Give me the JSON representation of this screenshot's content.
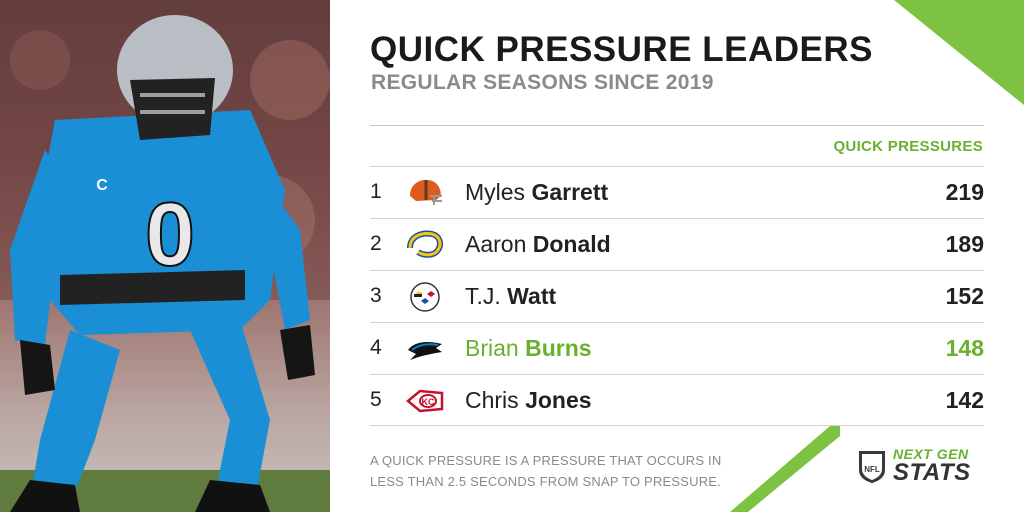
{
  "chart_data": {
    "type": "table",
    "title": "QUICK PRESSURE LEADERS",
    "subtitle": "REGULAR SEASONS SINCE 2019",
    "column_header": "QUICK PRESSURES",
    "rows": [
      {
        "rank": "1",
        "first": "Myles",
        "last": "Garrett",
        "team_icon": "browns-helmet-icon",
        "value": "219",
        "highlight": false
      },
      {
        "rank": "2",
        "first": "Aaron",
        "last": "Donald",
        "team_icon": "rams-horn-icon",
        "value": "189",
        "highlight": false
      },
      {
        "rank": "3",
        "first": "T.J.",
        "last": "Watt",
        "team_icon": "steelers-logo-icon",
        "value": "152",
        "highlight": false
      },
      {
        "rank": "4",
        "first": "Brian",
        "last": "Burns",
        "team_icon": "panthers-logo-icon",
        "value": "148",
        "highlight": true
      },
      {
        "rank": "5",
        "first": "Chris",
        "last": "Jones",
        "team_icon": "chiefs-arrowhead-icon",
        "value": "142",
        "highlight": false
      }
    ],
    "footnote": "A QUICK PRESSURE IS A PRESSURE THAT OCCURS IN LESS THAN 2.5 SECONDS FROM SNAP TO PRESSURE."
  },
  "branding": {
    "nfl_badge": "NFL",
    "ngs_line1": "NEXT GEN",
    "ngs_line2": "STATS"
  },
  "photo": {
    "jersey_number": "0",
    "captain_patch": "C"
  },
  "colors": {
    "accent_green": "#6ab02e",
    "title": "#1a1a1a",
    "subtitle": "#8a8a8a",
    "panthers_blue": "#1a8fd6"
  }
}
